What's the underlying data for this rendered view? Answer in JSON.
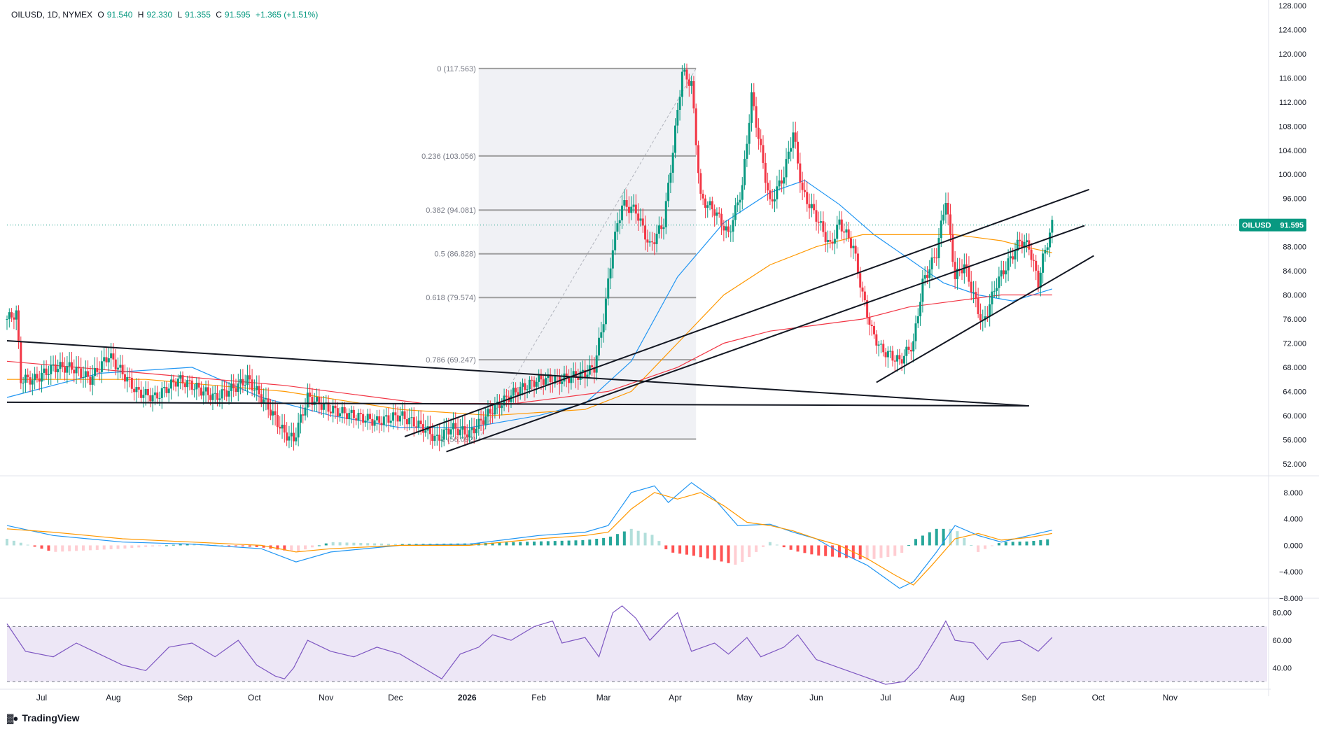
{
  "header": {
    "symbol": "OILUSD, 1D, NYMEX",
    "open_label": "O",
    "open": "91.540",
    "high_label": "H",
    "high": "92.330",
    "low_label": "L",
    "low": "91.355",
    "close_label": "C",
    "close": "91.595",
    "change": "+1.365 (+1.51%)"
  },
  "branding": {
    "name": "TradingView",
    "logo_icon": "tradingview-logo-icon"
  },
  "colors": {
    "up": "#089981",
    "down": "#f23645",
    "ma_blue": "#2196f3",
    "ma_orange": "#ff9800",
    "ma_red": "#f23645",
    "rsi": "#7e57c2",
    "rsi_band": "#ede7f6",
    "fib": "#9e9e9e",
    "grid": "#e0e3eb"
  },
  "last_price": {
    "symbol": "OILUSD",
    "value": "91.595"
  },
  "chart_data": [
    {
      "type": "candlestick",
      "panel": "price",
      "ylim": [
        50,
        128
      ],
      "y_ticks": [
        "128.000",
        "124.000",
        "120.000",
        "116.000",
        "112.000",
        "108.000",
        "104.000",
        "100.000",
        "96.000",
        "92.000",
        "88.000",
        "84.000",
        "80.000",
        "76.000",
        "72.000",
        "68.000",
        "64.000",
        "60.000",
        "56.000",
        "52.000"
      ],
      "x_ticks": [
        {
          "label": "Jul",
          "day": 15
        },
        {
          "label": "Aug",
          "day": 46
        },
        {
          "label": "Sep",
          "day": 77
        },
        {
          "label": "Oct",
          "day": 107
        },
        {
          "label": "Nov",
          "day": 138
        },
        {
          "label": "Dec",
          "day": 168
        },
        {
          "label": "2026",
          "day": 199
        },
        {
          "label": "Feb",
          "day": 230
        },
        {
          "label": "Mar",
          "day": 258
        },
        {
          "label": "Apr",
          "day": 289
        },
        {
          "label": "May",
          "day": 319
        },
        {
          "label": "Jun",
          "day": 350
        },
        {
          "label": "Jul",
          "day": 380
        },
        {
          "label": "Aug",
          "day": 411
        },
        {
          "label": "Sep",
          "day": 442
        },
        {
          "label": "Oct",
          "day": 472
        },
        {
          "label": "Nov",
          "day": 503
        }
      ],
      "x_range_days": [
        0,
        545
      ],
      "price_path": [
        [
          0,
          76
        ],
        [
          4,
          77
        ],
        [
          6,
          66
        ],
        [
          12,
          66
        ],
        [
          20,
          68
        ],
        [
          28,
          68
        ],
        [
          36,
          66
        ],
        [
          44,
          70
        ],
        [
          50,
          67
        ],
        [
          56,
          64
        ],
        [
          64,
          63
        ],
        [
          74,
          66
        ],
        [
          80,
          65
        ],
        [
          90,
          63
        ],
        [
          100,
          65
        ],
        [
          104,
          66
        ],
        [
          112,
          62
        ],
        [
          120,
          57
        ],
        [
          124,
          56
        ],
        [
          130,
          63
        ],
        [
          140,
          61
        ],
        [
          150,
          60
        ],
        [
          160,
          59
        ],
        [
          170,
          60
        ],
        [
          180,
          58
        ],
        [
          186,
          56
        ],
        [
          192,
          58
        ],
        [
          200,
          57
        ],
        [
          210,
          61
        ],
        [
          220,
          64
        ],
        [
          230,
          66
        ],
        [
          240,
          66
        ],
        [
          250,
          67
        ],
        [
          254,
          68
        ],
        [
          258,
          76
        ],
        [
          262,
          88
        ],
        [
          266,
          95
        ],
        [
          272,
          94
        ],
        [
          278,
          88
        ],
        [
          284,
          92
        ],
        [
          288,
          104
        ],
        [
          292,
          117
        ],
        [
          296,
          115
        ],
        [
          300,
          96
        ],
        [
          306,
          94
        ],
        [
          312,
          90
        ],
        [
          318,
          98
        ],
        [
          322,
          113
        ],
        [
          326,
          104
        ],
        [
          330,
          95
        ],
        [
          336,
          100
        ],
        [
          340,
          107
        ],
        [
          344,
          97
        ],
        [
          350,
          93
        ],
        [
          356,
          88
        ],
        [
          360,
          92
        ],
        [
          366,
          88
        ],
        [
          370,
          80
        ],
        [
          374,
          74
        ],
        [
          378,
          71
        ],
        [
          386,
          69
        ],
        [
          392,
          72
        ],
        [
          396,
          82
        ],
        [
          402,
          87
        ],
        [
          406,
          96
        ],
        [
          410,
          83
        ],
        [
          414,
          85
        ],
        [
          418,
          80
        ],
        [
          422,
          75
        ],
        [
          428,
          82
        ],
        [
          434,
          86
        ],
        [
          438,
          89
        ],
        [
          442,
          88
        ],
        [
          446,
          82
        ],
        [
          448,
          86
        ],
        [
          452,
          91.6
        ]
      ],
      "moving_averages": [
        {
          "name": "MA fast",
          "color": "#2196f3",
          "points": [
            [
              0,
              63
            ],
            [
              40,
              67
            ],
            [
              80,
              68
            ],
            [
              110,
              63
            ],
            [
              140,
              60
            ],
            [
              170,
              58
            ],
            [
              200,
              58
            ],
            [
              230,
              60
            ],
            [
              250,
              62
            ],
            [
              270,
              69
            ],
            [
              290,
              83
            ],
            [
              310,
              92
            ],
            [
              330,
              97
            ],
            [
              345,
              99
            ],
            [
              360,
              95
            ],
            [
              375,
              90
            ],
            [
              390,
              86
            ],
            [
              405,
              82
            ],
            [
              420,
              80
            ],
            [
              435,
              79
            ],
            [
              452,
              81
            ]
          ]
        },
        {
          "name": "MA mid",
          "color": "#ff9800",
          "points": [
            [
              0,
              66
            ],
            [
              60,
              66
            ],
            [
              120,
              64
            ],
            [
              170,
              61
            ],
            [
              210,
              60
            ],
            [
              250,
              61
            ],
            [
              270,
              64
            ],
            [
              290,
              72
            ],
            [
              310,
              80
            ],
            [
              330,
              85
            ],
            [
              350,
              88
            ],
            [
              370,
              90
            ],
            [
              390,
              90
            ],
            [
              410,
              90
            ],
            [
              430,
              89
            ],
            [
              440,
              88
            ],
            [
              452,
              87
            ]
          ]
        },
        {
          "name": "MA slow",
          "color": "#f23645",
          "points": [
            [
              0,
              69
            ],
            [
              60,
              67
            ],
            [
              120,
              65
            ],
            [
              180,
              62
            ],
            [
              220,
              62
            ],
            [
              260,
              64
            ],
            [
              290,
              68
            ],
            [
              310,
              72
            ],
            [
              330,
              74
            ],
            [
              350,
              75
            ],
            [
              370,
              76
            ],
            [
              390,
              78
            ],
            [
              410,
              79
            ],
            [
              430,
              80
            ],
            [
              452,
              80
            ]
          ]
        }
      ],
      "fibonacci": {
        "from_day": 204,
        "to_day": 298,
        "levels": [
          {
            "label": "0 (117.563)",
            "value": 117.563
          },
          {
            "label": "0.236 (103.056)",
            "value": 103.056
          },
          {
            "label": "0.382 (94.081)",
            "value": 94.081
          },
          {
            "label": "0.5 (86.828)",
            "value": 86.828
          },
          {
            "label": "0.618 (79.574)",
            "value": 79.574
          },
          {
            "label": "0.786 (69.247)",
            "value": 69.247
          },
          {
            "label": "1 (56.092)",
            "value": 56.092
          }
        ]
      },
      "trendlines": [
        {
          "x1": 0,
          "y1": 72.4,
          "x2": 442,
          "y2": 61.6
        },
        {
          "x1": 0,
          "y1": 62.2,
          "x2": 442,
          "y2": 61.6
        },
        {
          "x1": 172,
          "y1": 56.5,
          "x2": 468,
          "y2": 97.5
        },
        {
          "x1": 190,
          "y1": 54.0,
          "x2": 466,
          "y2": 91.5
        },
        {
          "x1": 376,
          "y1": 65.5,
          "x2": 470,
          "y2": 86.5
        }
      ]
    },
    {
      "type": "macd",
      "panel": "macd",
      "ylim": [
        -8,
        10
      ],
      "y_ticks": [
        "8.000",
        "4.000",
        "0.000",
        "−4.000",
        "−8.000"
      ],
      "macd_line": [
        [
          0,
          3
        ],
        [
          20,
          1.5
        ],
        [
          50,
          0.5
        ],
        [
          80,
          0.2
        ],
        [
          110,
          -0.5
        ],
        [
          125,
          -2.5
        ],
        [
          140,
          -1
        ],
        [
          170,
          0
        ],
        [
          200,
          0.2
        ],
        [
          230,
          1.5
        ],
        [
          250,
          2.0
        ],
        [
          260,
          3
        ],
        [
          270,
          8
        ],
        [
          280,
          9.0
        ],
        [
          286,
          6.5
        ],
        [
          296,
          9.5
        ],
        [
          306,
          7
        ],
        [
          316,
          3
        ],
        [
          330,
          3.2
        ],
        [
          340,
          2
        ],
        [
          350,
          1
        ],
        [
          360,
          -1
        ],
        [
          372,
          -3
        ],
        [
          386,
          -6.5
        ],
        [
          392,
          -5.5
        ],
        [
          402,
          -1
        ],
        [
          410,
          3
        ],
        [
          420,
          1.5
        ],
        [
          430,
          0.5
        ],
        [
          442,
          1.5
        ],
        [
          452,
          2.3
        ]
      ],
      "signal_line": [
        [
          0,
          2.5
        ],
        [
          20,
          2
        ],
        [
          50,
          1
        ],
        [
          80,
          0.5
        ],
        [
          110,
          0
        ],
        [
          125,
          -1
        ],
        [
          140,
          -0.5
        ],
        [
          170,
          0
        ],
        [
          200,
          0
        ],
        [
          230,
          1
        ],
        [
          250,
          1.5
        ],
        [
          260,
          2
        ],
        [
          270,
          5.5
        ],
        [
          280,
          8
        ],
        [
          290,
          7
        ],
        [
          300,
          8
        ],
        [
          310,
          6
        ],
        [
          320,
          3.5
        ],
        [
          330,
          3
        ],
        [
          340,
          2.2
        ],
        [
          350,
          1
        ],
        [
          360,
          0
        ],
        [
          372,
          -2
        ],
        [
          384,
          -4.5
        ],
        [
          392,
          -6
        ],
        [
          400,
          -3
        ],
        [
          410,
          1
        ],
        [
          420,
          1.8
        ],
        [
          430,
          0.8
        ],
        [
          442,
          1.2
        ],
        [
          452,
          1.8
        ]
      ],
      "histogram": [
        [
          0,
          1
        ],
        [
          20,
          -1
        ],
        [
          50,
          -0.5
        ],
        [
          80,
          0.3
        ],
        [
          110,
          -0.3
        ],
        [
          125,
          -1
        ],
        [
          140,
          0.5
        ],
        [
          170,
          0.2
        ],
        [
          200,
          0.3
        ],
        [
          230,
          0.6
        ],
        [
          250,
          0.8
        ],
        [
          260,
          1.2
        ],
        [
          270,
          2.5
        ],
        [
          280,
          1.5
        ],
        [
          286,
          -1
        ],
        [
          296,
          -1.5
        ],
        [
          306,
          -2.2
        ],
        [
          316,
          -3
        ],
        [
          330,
          0.5
        ],
        [
          340,
          -0.8
        ],
        [
          350,
          -1.5
        ],
        [
          360,
          -1.8
        ],
        [
          372,
          -2.2
        ],
        [
          386,
          -1.5
        ],
        [
          392,
          0.8
        ],
        [
          402,
          2.5
        ],
        [
          410,
          2.5
        ],
        [
          420,
          -1
        ],
        [
          430,
          0.5
        ],
        [
          442,
          0.6
        ],
        [
          452,
          1
        ]
      ]
    },
    {
      "type": "rsi",
      "panel": "rsi",
      "ylim": [
        27,
        88
      ],
      "y_ticks": [
        "80.00",
        "60.00",
        "40.00"
      ],
      "band": [
        30,
        70
      ],
      "points": [
        [
          0,
          72
        ],
        [
          8,
          52
        ],
        [
          20,
          48
        ],
        [
          30,
          58
        ],
        [
          40,
          50
        ],
        [
          50,
          42
        ],
        [
          60,
          38
        ],
        [
          70,
          55
        ],
        [
          80,
          58
        ],
        [
          90,
          48
        ],
        [
          100,
          60
        ],
        [
          108,
          42
        ],
        [
          116,
          34
        ],
        [
          120,
          32
        ],
        [
          124,
          40
        ],
        [
          130,
          60
        ],
        [
          140,
          52
        ],
        [
          150,
          48
        ],
        [
          160,
          55
        ],
        [
          170,
          50
        ],
        [
          180,
          40
        ],
        [
          188,
          32
        ],
        [
          196,
          50
        ],
        [
          204,
          55
        ],
        [
          210,
          64
        ],
        [
          218,
          60
        ],
        [
          228,
          70
        ],
        [
          236,
          74
        ],
        [
          240,
          58
        ],
        [
          250,
          62
        ],
        [
          256,
          48
        ],
        [
          262,
          80
        ],
        [
          266,
          85
        ],
        [
          272,
          76
        ],
        [
          278,
          60
        ],
        [
          286,
          74
        ],
        [
          290,
          80
        ],
        [
          296,
          52
        ],
        [
          306,
          58
        ],
        [
          312,
          50
        ],
        [
          320,
          62
        ],
        [
          326,
          48
        ],
        [
          336,
          55
        ],
        [
          342,
          64
        ],
        [
          350,
          46
        ],
        [
          360,
          40
        ],
        [
          370,
          34
        ],
        [
          380,
          28
        ],
        [
          388,
          30
        ],
        [
          394,
          40
        ],
        [
          402,
          62
        ],
        [
          406,
          74
        ],
        [
          410,
          60
        ],
        [
          418,
          58
        ],
        [
          424,
          46
        ],
        [
          430,
          58
        ],
        [
          438,
          60
        ],
        [
          446,
          52
        ],
        [
          452,
          62
        ]
      ]
    }
  ]
}
